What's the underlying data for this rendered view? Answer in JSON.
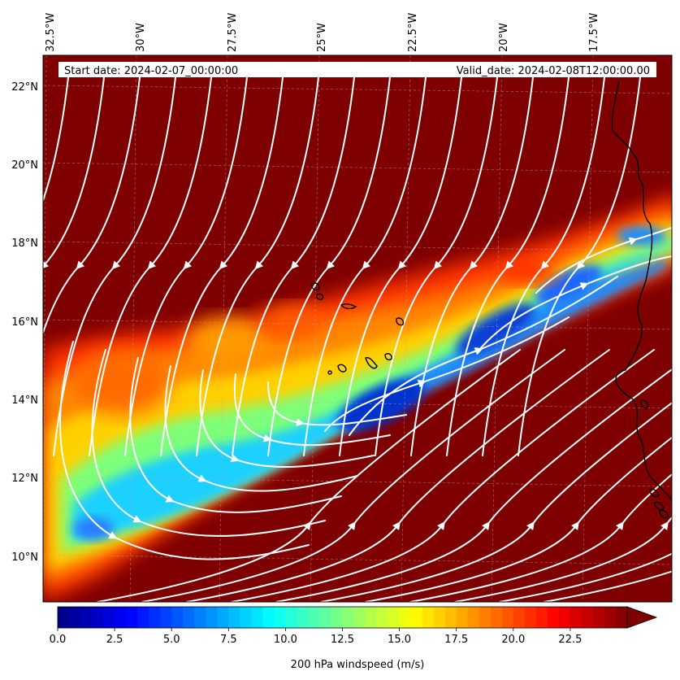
{
  "header": {
    "start_date": "Start date: 2024-02-07_00:00:00",
    "valid_date": "Valid_date: 2024-02-08T12:00:00.00"
  },
  "map": {
    "lon_ticks": [
      "32.5°W",
      "30°W",
      "27.5°W",
      "25°W",
      "22.5°W",
      "20°W",
      "17.5°W"
    ],
    "lat_ticks": [
      "22°N",
      "20°N",
      "18°N",
      "16°N",
      "14°N",
      "12°N",
      "10°N"
    ],
    "lon_range": [
      -33,
      -15.5
    ],
    "lat_range": [
      8.9,
      22.8
    ]
  },
  "colorbar": {
    "label": "200 hPa windspeed (m/s)",
    "ticks": [
      "0.0",
      "2.5",
      "5.0",
      "7.5",
      "10.0",
      "12.5",
      "15.0",
      "17.5",
      "20.0",
      "22.5"
    ],
    "colormap": "jet",
    "range": [
      0,
      25
    ],
    "extend": "max"
  },
  "colors": {
    "background_max": "#7f0000",
    "streamlines": "#ffffff",
    "coastline": "#000000"
  }
}
